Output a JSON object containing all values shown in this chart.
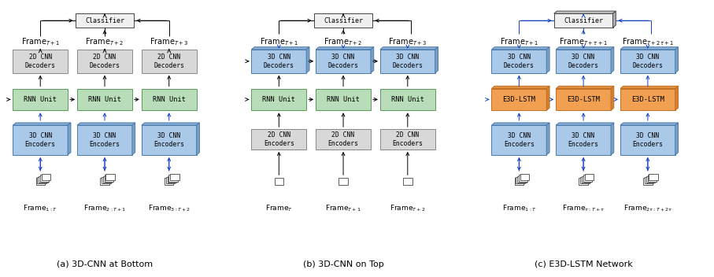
{
  "fig_width": 9.07,
  "fig_height": 3.52,
  "bg_color": "#ffffff",
  "colors": {
    "green_light": "#b8ddb8",
    "green_border": "#5a9a5a",
    "blue_3d_face": "#aac8e8",
    "blue_3d_top": "#8ab0d8",
    "blue_3d_side": "#7aa0c8",
    "blue_3d_border": "#4a7aaa",
    "gray_face": "#d8d8d8",
    "gray_border": "#888888",
    "orange_face": "#f0a050",
    "orange_top": "#e09040",
    "orange_side": "#d08030",
    "orange_border": "#c07020",
    "white": "#ffffff",
    "black": "#000000",
    "blue_arrow": "#1040c0",
    "clf_face": "#f0f0f0",
    "clf_border": "#444444",
    "clf_top": "#c8c8c8",
    "clf_side": "#b0b0b0"
  },
  "panels": [
    {
      "title": "(a) 3D-CNN at Bottom",
      "ox": 0.08,
      "frame_top_labels": [
        "Frame$_{T+1}$",
        "Frame$_{T+2}$",
        "Frame$_{T+3}$"
      ],
      "frame_bot_labels": [
        "Frame$_{1:T}$",
        "Frame$_{2:T+1}$",
        "Frame$_{3:T+2}$"
      ],
      "decoder_type": "2D CNN\nDecoders",
      "decoder_3d": false,
      "rnn_label": "RNN Unit",
      "encoder_type": "3D CNN\nEncoders",
      "encoder_3d": true,
      "bottom_3d": true,
      "arrow_color_enc": "#1040c0",
      "arrow_color_rnn": "#000000",
      "arrow_color_dec": "#000000",
      "arrow_color_top": "#000000",
      "classifier": "Classifier",
      "clf_3d": false
    },
    {
      "title": "(b) 3D-CNN on Top",
      "ox": 3.12,
      "frame_top_labels": [
        "Frame$_{T+1}$",
        "Frame$_{T+2}$",
        "Frame$_{T+3}$"
      ],
      "frame_bot_labels": [
        "Frame$_{T}$",
        "Frame$_{T+1}$",
        "Frame$_{T+2}$"
      ],
      "decoder_type": "3D CNN\nDecoders",
      "decoder_3d": true,
      "rnn_label": "RNN Unit",
      "encoder_type": "2D CNN\nEncoders",
      "encoder_3d": false,
      "bottom_3d": false,
      "arrow_color_enc": "#000000",
      "arrow_color_rnn": "#000000",
      "arrow_color_dec": "#1040c0",
      "arrow_color_top": "#000000",
      "classifier": "Classifier",
      "clf_3d": false
    },
    {
      "title": "(c) E3D-LSTM Network",
      "ox": 6.18,
      "frame_top_labels": [
        "Frame$_{T+1}$",
        "Frame$_{T+\\tau+1}$",
        "Frame$_{T+2\\tau+1}$"
      ],
      "frame_bot_labels": [
        "Frame$_{1:T}$",
        "Frame$_{\\tau:T+\\tau}$",
        "Frame$_{2\\tau:T+2\\tau}$"
      ],
      "decoder_type": "3D CNN\nDecoders",
      "decoder_3d": true,
      "rnn_label": "E3D-LSTM",
      "rnn_orange": true,
      "encoder_type": "3D CNN\nEncoders",
      "encoder_3d": true,
      "bottom_3d": true,
      "arrow_color_enc": "#1040c0",
      "arrow_color_rnn": "#1040c0",
      "arrow_color_dec": "#1040c0",
      "arrow_color_top": "#1040c0",
      "classifier": "Classifier",
      "clf_3d": true
    }
  ]
}
